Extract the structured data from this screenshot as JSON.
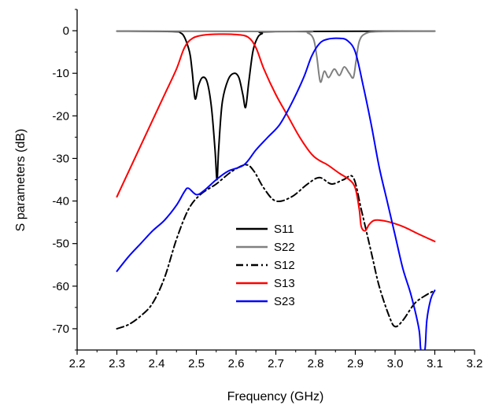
{
  "chart_data": {
    "type": "line",
    "title": "",
    "xlabel": "Frequency (GHz)",
    "ylabel": "S parameters (dB)",
    "xlim": [
      2.2,
      3.2
    ],
    "ylim": [
      -75,
      5
    ],
    "xticks": [
      "2.2",
      "2.3",
      "2.4",
      "2.5",
      "2.6",
      "2.7",
      "2.8",
      "2.9",
      "3.0",
      "3.1",
      "3.2"
    ],
    "yticks": [
      "0",
      "-10",
      "-20",
      "-30",
      "-40",
      "-50",
      "-60",
      "-70"
    ],
    "grid": false,
    "legend_position": "center",
    "series": [
      {
        "name": "S11",
        "color": "#000000",
        "style": "solid",
        "points": [
          [
            2.3,
            -0.1
          ],
          [
            2.44,
            -0.2
          ],
          [
            2.46,
            -0.5
          ],
          [
            2.47,
            -1.5
          ],
          [
            2.48,
            -4
          ],
          [
            2.485,
            -6
          ],
          [
            2.49,
            -10
          ],
          [
            2.497,
            -16
          ],
          [
            2.505,
            -13
          ],
          [
            2.515,
            -11
          ],
          [
            2.527,
            -12
          ],
          [
            2.538,
            -18
          ],
          [
            2.547,
            -28
          ],
          [
            2.552,
            -35
          ],
          [
            2.556,
            -28
          ],
          [
            2.565,
            -17
          ],
          [
            2.58,
            -11.5
          ],
          [
            2.595,
            -10
          ],
          [
            2.607,
            -11
          ],
          [
            2.617,
            -15
          ],
          [
            2.624,
            -18
          ],
          [
            2.632,
            -12
          ],
          [
            2.642,
            -5
          ],
          [
            2.652,
            -2
          ],
          [
            2.665,
            -0.7
          ],
          [
            2.7,
            -0.2
          ],
          [
            3.1,
            -0.1
          ]
        ]
      },
      {
        "name": "S22",
        "color": "#808080",
        "style": "solid",
        "points": [
          [
            2.3,
            -0.1
          ],
          [
            2.75,
            -0.2
          ],
          [
            2.78,
            -0.5
          ],
          [
            2.795,
            -2
          ],
          [
            2.803,
            -6
          ],
          [
            2.812,
            -12
          ],
          [
            2.822,
            -9.5
          ],
          [
            2.833,
            -11
          ],
          [
            2.847,
            -9
          ],
          [
            2.86,
            -10.5
          ],
          [
            2.872,
            -8.5
          ],
          [
            2.885,
            -10
          ],
          [
            2.895,
            -11
          ],
          [
            2.902,
            -7
          ],
          [
            2.91,
            -2.5
          ],
          [
            2.925,
            -0.7
          ],
          [
            2.96,
            -0.2
          ],
          [
            3.1,
            -0.1
          ]
        ]
      },
      {
        "name": "S12",
        "color": "#000000",
        "style": "dashdot",
        "points": [
          [
            2.3,
            -70
          ],
          [
            2.33,
            -69
          ],
          [
            2.36,
            -67
          ],
          [
            2.39,
            -64
          ],
          [
            2.42,
            -58
          ],
          [
            2.45,
            -49
          ],
          [
            2.48,
            -42
          ],
          [
            2.51,
            -38.5
          ],
          [
            2.55,
            -36
          ],
          [
            2.59,
            -33
          ],
          [
            2.625,
            -31.5
          ],
          [
            2.645,
            -33
          ],
          [
            2.67,
            -37
          ],
          [
            2.7,
            -40
          ],
          [
            2.74,
            -39
          ],
          [
            2.78,
            -36
          ],
          [
            2.81,
            -34.5
          ],
          [
            2.84,
            -36
          ],
          [
            2.87,
            -35
          ],
          [
            2.895,
            -34.5
          ],
          [
            2.915,
            -42
          ],
          [
            2.94,
            -52
          ],
          [
            2.96,
            -60
          ],
          [
            2.985,
            -67
          ],
          [
            3.0,
            -69.5
          ],
          [
            3.02,
            -68
          ],
          [
            3.05,
            -64
          ],
          [
            3.08,
            -62
          ],
          [
            3.1,
            -61
          ]
        ]
      },
      {
        "name": "S13",
        "color": "#ff0000",
        "style": "solid",
        "points": [
          [
            2.3,
            -39
          ],
          [
            2.33,
            -33
          ],
          [
            2.36,
            -27
          ],
          [
            2.39,
            -21
          ],
          [
            2.42,
            -15
          ],
          [
            2.45,
            -9
          ],
          [
            2.47,
            -4
          ],
          [
            2.49,
            -1.8
          ],
          [
            2.52,
            -1
          ],
          [
            2.56,
            -0.8
          ],
          [
            2.6,
            -0.9
          ],
          [
            2.63,
            -1.5
          ],
          [
            2.65,
            -4
          ],
          [
            2.67,
            -9
          ],
          [
            2.7,
            -15
          ],
          [
            2.73,
            -20
          ],
          [
            2.76,
            -25
          ],
          [
            2.79,
            -29
          ],
          [
            2.81,
            -30.5
          ],
          [
            2.83,
            -31.5
          ],
          [
            2.86,
            -33.5
          ],
          [
            2.885,
            -35
          ],
          [
            2.9,
            -37
          ],
          [
            2.91,
            -42
          ],
          [
            2.915,
            -46
          ],
          [
            2.925,
            -47
          ],
          [
            2.935,
            -45.5
          ],
          [
            2.95,
            -44.5
          ],
          [
            2.98,
            -44.8
          ],
          [
            3.02,
            -46
          ],
          [
            3.06,
            -47.8
          ],
          [
            3.1,
            -49.5
          ]
        ]
      },
      {
        "name": "S23",
        "color": "#0000ff",
        "style": "solid",
        "points": [
          [
            2.3,
            -56.5
          ],
          [
            2.33,
            -53
          ],
          [
            2.36,
            -50
          ],
          [
            2.39,
            -47
          ],
          [
            2.42,
            -44.5
          ],
          [
            2.45,
            -41
          ],
          [
            2.47,
            -37.8
          ],
          [
            2.48,
            -37
          ],
          [
            2.5,
            -38.5
          ],
          [
            2.52,
            -37.5
          ],
          [
            2.55,
            -35
          ],
          [
            2.58,
            -33
          ],
          [
            2.62,
            -31.5
          ],
          [
            2.65,
            -28
          ],
          [
            2.68,
            -25
          ],
          [
            2.71,
            -22
          ],
          [
            2.74,
            -17
          ],
          [
            2.77,
            -11
          ],
          [
            2.79,
            -6
          ],
          [
            2.81,
            -3
          ],
          [
            2.83,
            -2
          ],
          [
            2.86,
            -1.8
          ],
          [
            2.88,
            -2.3
          ],
          [
            2.9,
            -5
          ],
          [
            2.92,
            -13
          ],
          [
            2.94,
            -22
          ],
          [
            2.96,
            -32
          ],
          [
            2.98,
            -40
          ],
          [
            3.0,
            -48
          ],
          [
            3.02,
            -56
          ],
          [
            3.04,
            -62
          ],
          [
            3.06,
            -70
          ],
          [
            3.065,
            -75
          ],
          [
            3.075,
            -75
          ],
          [
            3.08,
            -68
          ],
          [
            3.09,
            -63
          ],
          [
            3.1,
            -61
          ]
        ]
      }
    ]
  }
}
